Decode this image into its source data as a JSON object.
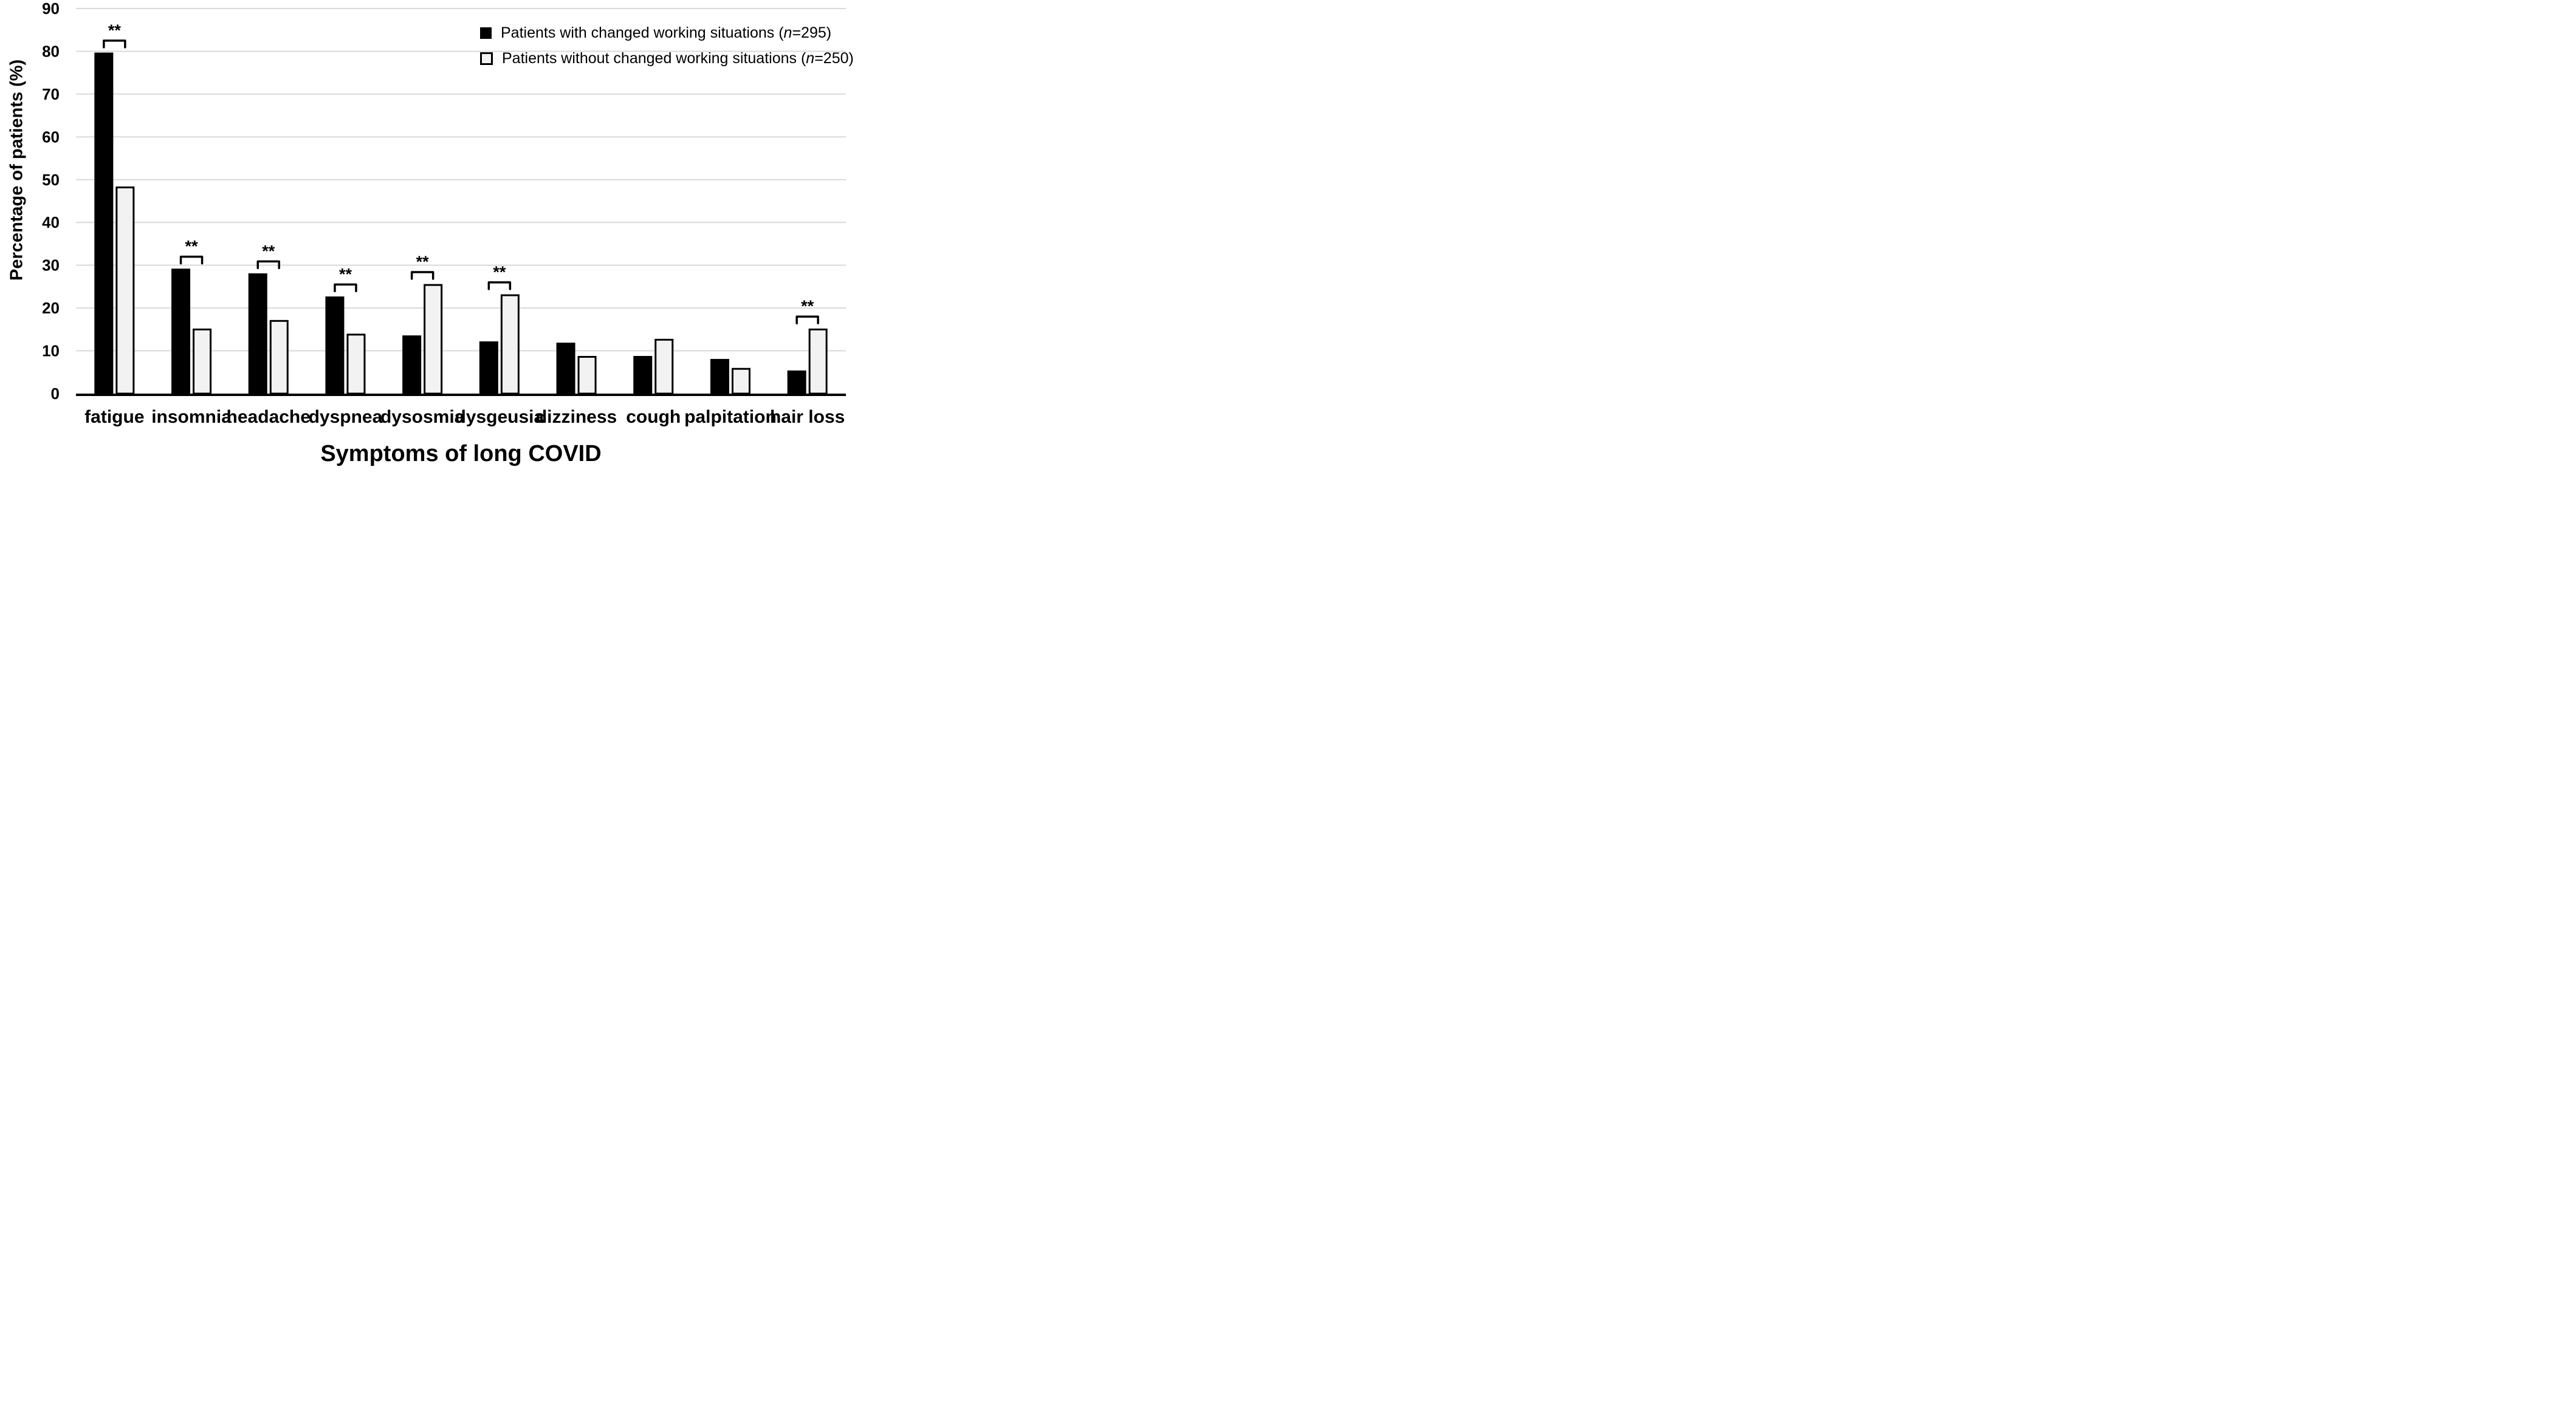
{
  "figure": {
    "y_axis_title": "Percentage of patients (%)",
    "x_axis_title": "Symptoms of long COVID"
  },
  "legend": [
    {
      "marker": "black-filled-square",
      "text_pre": "Patients with changed working situations (",
      "n_italic": "n",
      "text_post": "=295)"
    },
    {
      "marker": "light-outlined-square",
      "text_pre": "Patients without changed working situations (",
      "n_italic": "n",
      "text_post": "=250)"
    }
  ],
  "chart_data": {
    "type": "bar",
    "title": "",
    "xlabel": "Symptoms of long COVID",
    "ylabel": "Percentage of patients (%)",
    "categories": [
      "fatigue",
      "insomnia",
      "headache",
      "dyspnea",
      "dysosmia",
      "dysgeusia",
      "dizziness",
      "cough",
      "palpitation",
      "hair loss"
    ],
    "series": [
      {
        "name": "Patients with changed working situations (n=295)",
        "fill": "#000000",
        "values": [
          79.7,
          29.2,
          28.1,
          22.7,
          13.6,
          12.2,
          11.9,
          8.8,
          8.1,
          5.4
        ]
      },
      {
        "name": "Patients without changed working situations (n=250)",
        "fill": "#f2f2f2",
        "border": "#000000",
        "values": [
          48.4,
          15.2,
          17.2,
          14.0,
          25.6,
          23.2,
          8.8,
          12.8,
          6.0,
          15.2
        ]
      }
    ],
    "ylim": [
      0,
      90
    ],
    "yticks": [
      0,
      10,
      20,
      30,
      40,
      50,
      60,
      70,
      80,
      90
    ],
    "grid": "horizontal",
    "gridline_color": "#d9d9d9",
    "axis_line_color": "#000000",
    "significance": {
      "symbol": "**",
      "category_indices": [
        0,
        1,
        2,
        3,
        4,
        5,
        9
      ]
    },
    "legend_position": "top-right"
  }
}
